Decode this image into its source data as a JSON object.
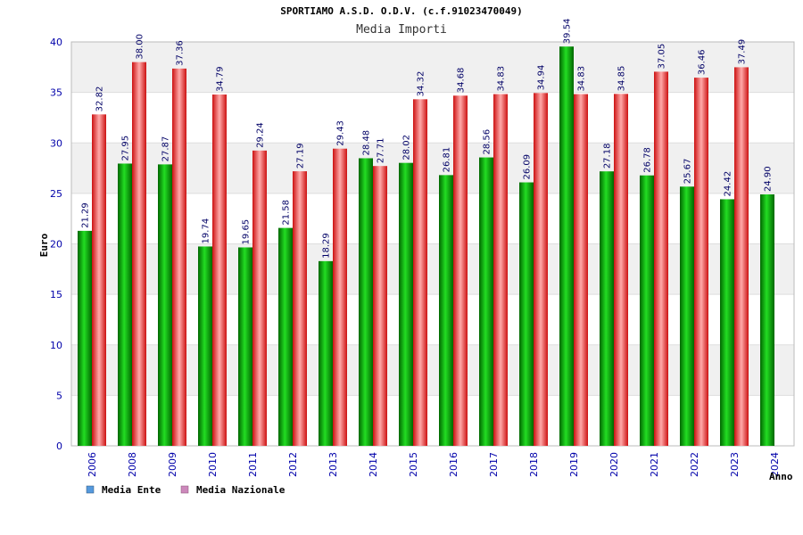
{
  "chart_data": {
    "type": "bar",
    "title": "SPORTIAMO A.S.D. O.D.V. (c.f.91023470049)",
    "subtitle": "Media Importi",
    "xlabel": "Anno",
    "ylabel": "Euro",
    "ylim": [
      0,
      40
    ],
    "yticks": [
      "0",
      "5",
      "10",
      "15",
      "20",
      "25",
      "30",
      "35",
      "40"
    ],
    "grid": true,
    "legend_position": "bottom-left",
    "categories": [
      "2006",
      "2008",
      "2009",
      "2010",
      "2011",
      "2012",
      "2013",
      "2014",
      "2015",
      "2016",
      "2017",
      "2018",
      "2019",
      "2020",
      "2021",
      "2022",
      "2023",
      "2024"
    ],
    "series": [
      {
        "name": "Media Ente",
        "legend_color": "#5599dd",
        "color": "#00aa00",
        "values": [
          21.29,
          27.95,
          27.87,
          19.74,
          19.65,
          21.58,
          18.29,
          28.48,
          28.02,
          26.81,
          28.56,
          26.09,
          39.54,
          27.18,
          26.78,
          25.67,
          24.42,
          24.9
        ],
        "labels": [
          "21.29",
          "27.95",
          "27.87",
          "19.74",
          "19.65",
          "21.58",
          "18.29",
          "28.48",
          "28.02",
          "26.81",
          "28.56",
          "26.09",
          "39.54",
          "27.18",
          "26.78",
          "25.67",
          "24.42",
          "24.90"
        ]
      },
      {
        "name": "Media Nazionale",
        "legend_color": "#cc88bb",
        "color": "#ee2222",
        "values": [
          32.82,
          38.0,
          37.36,
          34.79,
          29.24,
          27.19,
          29.43,
          27.71,
          34.32,
          34.68,
          34.83,
          34.94,
          34.83,
          34.85,
          37.05,
          36.46,
          37.49,
          null
        ],
        "labels": [
          "32.82",
          "38.00",
          "37.36",
          "34.79",
          "29.24",
          "27.19",
          "29.43",
          "27.71",
          "34.32",
          "34.68",
          "34.83",
          "34.94",
          "34.83",
          "34.85",
          "37.05",
          "36.46",
          "37.49",
          null
        ]
      }
    ]
  }
}
